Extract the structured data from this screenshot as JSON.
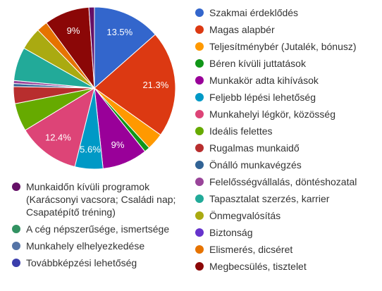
{
  "chart_data": {
    "type": "pie",
    "legend_position": "right",
    "slices": [
      {
        "label": "Szakmai érdeklődés",
        "value": 13.5,
        "color": "#3366cc",
        "data_label": "13.5%"
      },
      {
        "label": "Magas alapbér",
        "value": 21.3,
        "color": "#dc3912",
        "data_label": "21.3%"
      },
      {
        "label": "Teljesítménybér (Jutalék, bónusz)",
        "value": 3.4,
        "color": "#ff9900",
        "data_label": ""
      },
      {
        "label": "Béren kívüli juttatások",
        "value": 1.1,
        "color": "#109618",
        "data_label": ""
      },
      {
        "label": "Munkakör adta kihívások",
        "value": 9.0,
        "color": "#990099",
        "data_label": "9%"
      },
      {
        "label": "Feljebb lépési lehetőség",
        "value": 5.6,
        "color": "#0099c6",
        "data_label": "5.6%"
      },
      {
        "label": "Munkahelyi légkör, közösség",
        "value": 12.4,
        "color": "#dd4477",
        "data_label": "12.4%"
      },
      {
        "label": "Ideális felettes",
        "value": 5.6,
        "color": "#66aa00",
        "data_label": ""
      },
      {
        "label": "Rugalmas munkaidő",
        "value": 3.4,
        "color": "#b82e2e",
        "data_label": ""
      },
      {
        "label": "Önálló munkavégzés",
        "value": 0.6,
        "color": "#316395",
        "data_label": ""
      },
      {
        "label": "Felelősségvállalás, döntéshozatal",
        "value": 0.6,
        "color": "#994499",
        "data_label": ""
      },
      {
        "label": "Tapasztalat szerzés, karrier",
        "value": 6.7,
        "color": "#22aa99",
        "data_label": ""
      },
      {
        "label": "Önmegvalósítás",
        "value": 4.5,
        "color": "#aaaa11",
        "data_label": ""
      },
      {
        "label": "Biztonság",
        "value": 0.0,
        "color": "#6633cc",
        "data_label": ""
      },
      {
        "label": "Elismerés, dicséret",
        "value": 2.2,
        "color": "#e67300",
        "data_label": ""
      },
      {
        "label": "Megbecsülés, tisztelet",
        "value": 9.0,
        "color": "#8b0707",
        "data_label": "9%"
      },
      {
        "label": "Munkaidőn kívüli programok\n(Karácsonyi vacsora; Családi nap;\nCsapatépítő tréning)",
        "value": 1.1,
        "color": "#651067",
        "data_label": ""
      },
      {
        "label": "A cég népszerűsége, ismertsége",
        "value": 0.0,
        "color": "#329262",
        "data_label": ""
      },
      {
        "label": "Munkahely elhelyezkedése",
        "value": 0.0,
        "color": "#5574a6",
        "data_label": ""
      },
      {
        "label": "Továbbképzési lehetőség",
        "value": 0.0,
        "color": "#3b3eac",
        "data_label": ""
      }
    ]
  }
}
